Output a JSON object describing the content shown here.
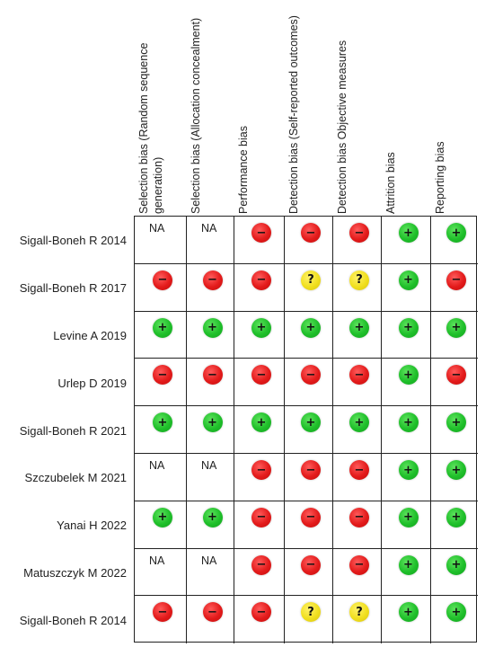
{
  "columns": [
    "Selection bias (Random sequence generation)",
    "Selection bias (Allocation concealment)",
    "Performance bias",
    "Detection bias (Self-reported outcomes)",
    "Detection bias Objective measures",
    "Attrition bias",
    "Reporting bias"
  ],
  "rows": [
    {
      "study": "Sigall-Boneh R 2014",
      "cells": [
        "NA",
        "NA",
        "high",
        "high",
        "high",
        "low",
        "low"
      ]
    },
    {
      "study": "Sigall-Boneh R 2017",
      "cells": [
        "high",
        "high",
        "high",
        "unclear",
        "unclear",
        "low",
        "high"
      ]
    },
    {
      "study": "Levine A 2019",
      "cells": [
        "low",
        "low",
        "low",
        "low",
        "low",
        "low",
        "low"
      ]
    },
    {
      "study": "Urlep D 2019",
      "cells": [
        "high",
        "high",
        "high",
        "high",
        "high",
        "low",
        "high"
      ]
    },
    {
      "study": "Sigall-Boneh R 2021",
      "cells": [
        "low",
        "low",
        "low",
        "low",
        "low",
        "low",
        "low"
      ]
    },
    {
      "study": "Szczubelek M 2021",
      "cells": [
        "NA",
        "NA",
        "high",
        "high",
        "high",
        "low",
        "low"
      ]
    },
    {
      "study": "Yanai H 2022",
      "cells": [
        "low",
        "low",
        "high",
        "high",
        "high",
        "low",
        "low"
      ]
    },
    {
      "study": "Matuszczyk M 2022",
      "cells": [
        "NA",
        "NA",
        "high",
        "high",
        "high",
        "low",
        "low"
      ]
    },
    {
      "study": "Sigall-Boneh R 2014",
      "cells": [
        "high",
        "high",
        "high",
        "unclear",
        "unclear",
        "low",
        "low"
      ]
    }
  ],
  "symbols": {
    "low": "+",
    "high": "−",
    "unclear": "?"
  },
  "colors": {
    "low": "#1fbf2a",
    "high": "#e31b1b",
    "unclear": "#f0df1e"
  }
}
